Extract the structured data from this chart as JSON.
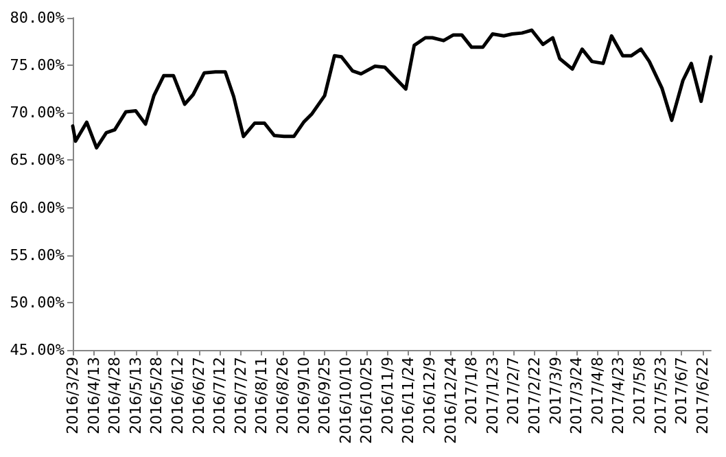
{
  "chart_data": {
    "type": "line",
    "color": "#000000",
    "grid": false,
    "marker": "none",
    "line_style": "solid",
    "x": [
      "2016-03-29",
      "2016-03-31",
      "2016-04-08",
      "2016-04-15",
      "2016-04-22",
      "2016-04-28",
      "2016-05-06",
      "2016-05-13",
      "2016-05-20",
      "2016-05-26",
      "2016-06-02",
      "2016-06-09",
      "2016-06-17",
      "2016-06-23",
      "2016-07-01",
      "2016-07-09",
      "2016-07-16",
      "2016-07-22",
      "2016-07-29",
      "2016-08-06",
      "2016-08-13",
      "2016-08-20",
      "2016-08-27",
      "2016-09-03",
      "2016-09-10",
      "2016-09-16",
      "2016-09-25",
      "2016-10-02",
      "2016-10-07",
      "2016-10-15",
      "2016-10-21",
      "2016-10-31",
      "2016-11-07",
      "2016-11-22",
      "2016-11-28",
      "2016-12-06",
      "2016-12-11",
      "2016-12-19",
      "2016-12-26",
      "2017-01-01",
      "2017-01-08",
      "2017-01-16",
      "2017-01-23",
      "2017-01-31",
      "2017-02-06",
      "2017-02-13",
      "2017-02-20",
      "2017-02-28",
      "2017-03-07",
      "2017-03-12",
      "2017-03-21",
      "2017-03-28",
      "2017-04-04",
      "2017-04-12",
      "2017-04-18",
      "2017-04-26",
      "2017-05-02",
      "2017-05-09",
      "2017-05-15",
      "2017-05-24",
      "2017-05-31",
      "2017-06-08",
      "2017-06-14",
      "2017-06-21",
      "2017-06-28"
    ],
    "values": [
      68.6,
      67.0,
      69.0,
      66.3,
      67.9,
      68.2,
      70.1,
      70.2,
      68.8,
      71.8,
      73.9,
      73.9,
      70.9,
      71.9,
      74.2,
      74.3,
      74.3,
      71.7,
      67.5,
      68.9,
      68.9,
      67.6,
      67.5,
      67.5,
      69.0,
      69.9,
      71.8,
      76.0,
      75.9,
      74.4,
      74.1,
      74.9,
      74.8,
      72.5,
      77.1,
      77.9,
      77.9,
      77.6,
      78.2,
      78.2,
      76.9,
      76.9,
      78.3,
      78.1,
      78.3,
      78.4,
      78.7,
      77.2,
      77.9,
      75.7,
      74.6,
      76.7,
      75.4,
      75.2,
      78.1,
      76.0,
      76.0,
      76.7,
      75.4,
      72.6,
      69.2,
      73.4,
      75.2,
      71.2,
      75.9
    ],
    "xlim": [
      "2016-03-29",
      "2017-06-28"
    ],
    "xticks": [
      {
        "value": "2016-03-29",
        "label": "2016/3/29"
      },
      {
        "value": "2016-04-13",
        "label": "2016/4/13"
      },
      {
        "value": "2016-04-28",
        "label": "2016/4/28"
      },
      {
        "value": "2016-05-13",
        "label": "2016/5/13"
      },
      {
        "value": "2016-05-28",
        "label": "2016/5/28"
      },
      {
        "value": "2016-06-12",
        "label": "2016/6/12"
      },
      {
        "value": "2016-06-27",
        "label": "2016/6/27"
      },
      {
        "value": "2016-07-12",
        "label": "2016/7/12"
      },
      {
        "value": "2016-07-27",
        "label": "2016/7/27"
      },
      {
        "value": "2016-08-11",
        "label": "2016/8/11"
      },
      {
        "value": "2016-08-26",
        "label": "2016/8/26"
      },
      {
        "value": "2016-09-10",
        "label": "2016/9/10"
      },
      {
        "value": "2016-09-25",
        "label": "2016/9/25"
      },
      {
        "value": "2016-10-10",
        "label": "2016/10/10"
      },
      {
        "value": "2016-10-25",
        "label": "2016/10/25"
      },
      {
        "value": "2016-11-09",
        "label": "2016/11/9"
      },
      {
        "value": "2016-11-24",
        "label": "2016/11/24"
      },
      {
        "value": "2016-12-09",
        "label": "2016/12/9"
      },
      {
        "value": "2016-12-24",
        "label": "2016/12/24"
      },
      {
        "value": "2017-01-08",
        "label": "2017/1/8"
      },
      {
        "value": "2017-01-23",
        "label": "2017/1/23"
      },
      {
        "value": "2017-02-07",
        "label": "2017/2/7"
      },
      {
        "value": "2017-02-22",
        "label": "2017/2/22"
      },
      {
        "value": "2017-03-09",
        "label": "2017/3/9"
      },
      {
        "value": "2017-03-24",
        "label": "2017/3/24"
      },
      {
        "value": "2017-04-08",
        "label": "2017/4/8"
      },
      {
        "value": "2017-04-23",
        "label": "2017/4/23"
      },
      {
        "value": "2017-05-08",
        "label": "2017/5/8"
      },
      {
        "value": "2017-05-23",
        "label": "2017/5/23"
      },
      {
        "value": "2017-06-07",
        "label": "2017/6/7"
      },
      {
        "value": "2017-06-22",
        "label": "2017/6/22"
      }
    ],
    "ylim": [
      45,
      80
    ],
    "yticks": [
      {
        "value": 45,
        "label": "45.00%"
      },
      {
        "value": 50,
        "label": "50.00%"
      },
      {
        "value": 55,
        "label": "55.00%"
      },
      {
        "value": 60,
        "label": "60.00%"
      },
      {
        "value": 65,
        "label": "65.00%"
      },
      {
        "value": 70,
        "label": "70.00%"
      },
      {
        "value": 75,
        "label": "75.00%"
      },
      {
        "value": 80,
        "label": "80.00%"
      }
    ]
  }
}
